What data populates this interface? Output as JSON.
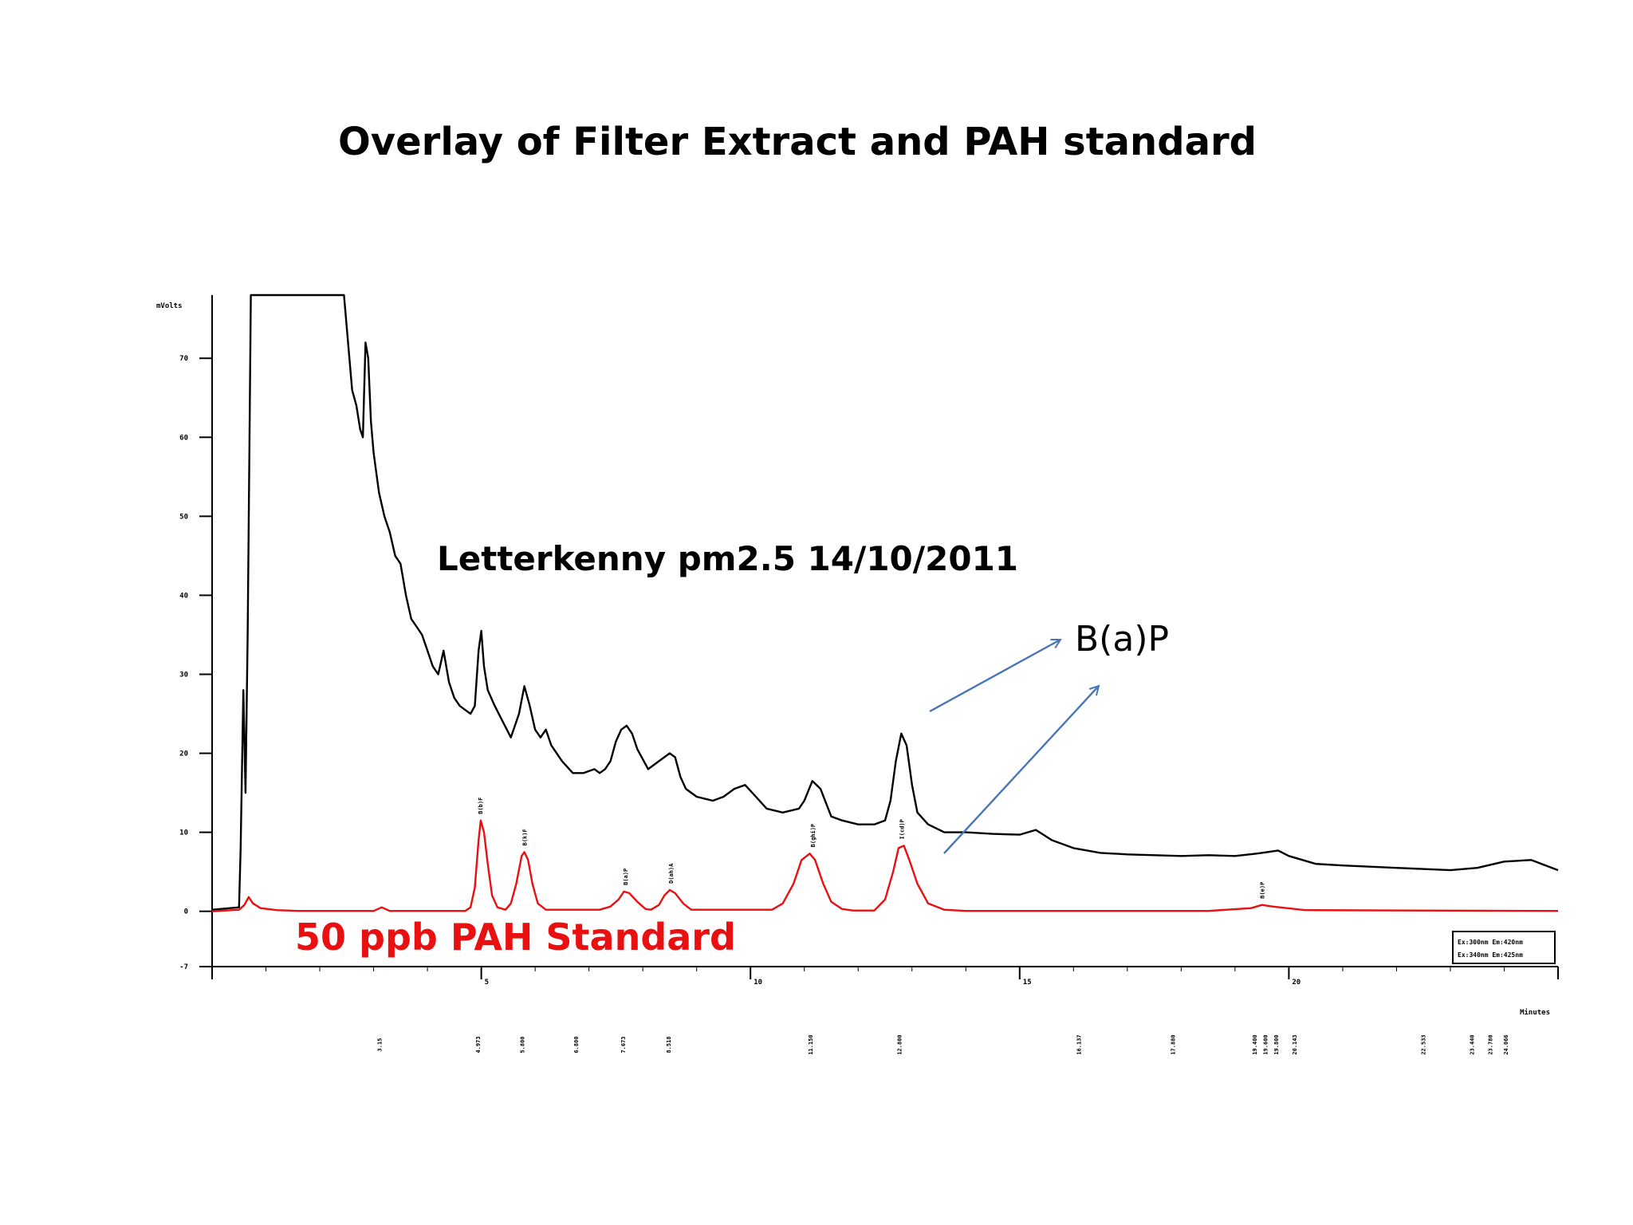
{
  "slide": {
    "title": "Overlay of Filter Extract and PAH standard",
    "sample_label": "Letterkenny  pm2.5 14/10/2011",
    "standard_label": "50 ppb PAH Standard",
    "bap_label": "B(a)P"
  },
  "colors": {
    "sample": "#000000",
    "standard": "#e81010",
    "arrow": "#4a76b8"
  },
  "chart_data": {
    "type": "line",
    "title": "",
    "xlabel": "Minutes",
    "ylabel": "mVolts",
    "xlim": [
      0,
      25
    ],
    "ylim": [
      -7,
      78
    ],
    "x_ticks": [
      0,
      5,
      10,
      15,
      20,
      25
    ],
    "x_tick_labels": [
      "",
      "5",
      "10",
      "15",
      "20",
      ""
    ],
    "y_ticks": [
      -7,
      0,
      10,
      20,
      30,
      40,
      50,
      60,
      70
    ],
    "y_tick_labels": [
      "-7",
      "0",
      "10",
      "20",
      "30",
      "40",
      "50",
      "60",
      "70"
    ],
    "grid": false,
    "retention_time_labels": [
      "3.15",
      "4.973",
      "5.800",
      "6.800",
      "7.673",
      "8.518",
      "11.150",
      "12.800",
      "16.137",
      "17.880",
      "19.400",
      "19.600",
      "19.800",
      "20.143",
      "22.533",
      "23.440",
      "23.780",
      "24.066"
    ],
    "retention_times": [
      3.15,
      4.973,
      5.8,
      6.8,
      7.673,
      8.518,
      11.15,
      12.8,
      16.137,
      17.88,
      19.4,
      19.6,
      19.8,
      20.143,
      22.533,
      23.44,
      23.78,
      24.066
    ],
    "standard_peak_labels": [
      "B(b)F",
      "B(k)F",
      "B(a)P",
      "D(ah)A",
      "B(ghi)P",
      "I(cd)P",
      "B(e)P"
    ],
    "standard_peak_times": [
      4.973,
      5.8,
      7.673,
      8.518,
      11.15,
      12.8,
      19.5
    ],
    "legend_entries": [
      "Ex:300nm Em:420nm",
      "Ex:340nm Em:425nm"
    ],
    "series": [
      {
        "name": "Letterkenny  pm2.5 14/10/2011",
        "x": [
          0,
          0.5,
          0.53,
          0.58,
          0.62,
          0.66,
          0.72,
          0.85,
          2.45,
          2.5,
          2.6,
          2.68,
          2.75,
          2.8,
          2.85,
          2.9,
          2.95,
          3.0,
          3.1,
          3.2,
          3.3,
          3.4,
          3.5,
          3.6,
          3.7,
          3.8,
          3.9,
          4.0,
          4.1,
          4.2,
          4.3,
          4.4,
          4.5,
          4.6,
          4.7,
          4.8,
          4.88,
          4.95,
          5.0,
          5.05,
          5.12,
          5.25,
          5.4,
          5.55,
          5.7,
          5.8,
          5.9,
          6.0,
          6.1,
          6.2,
          6.3,
          6.5,
          6.7,
          6.9,
          7.1,
          7.2,
          7.3,
          7.4,
          7.5,
          7.6,
          7.7,
          7.8,
          7.9,
          8.1,
          8.3,
          8.5,
          8.6,
          8.7,
          8.8,
          9.0,
          9.3,
          9.5,
          9.7,
          9.9,
          10.1,
          10.3,
          10.6,
          10.9,
          11.0,
          11.15,
          11.3,
          11.5,
          11.7,
          12.0,
          12.3,
          12.5,
          12.6,
          12.7,
          12.8,
          12.9,
          13.0,
          13.1,
          13.3,
          13.6,
          14.0,
          14.5,
          15.0,
          15.3,
          15.6,
          16.0,
          16.5,
          17.0,
          17.5,
          18.0,
          18.5,
          19.0,
          19.4,
          19.6,
          19.8,
          20.0,
          20.5,
          21.0,
          22.0,
          23.0,
          23.5,
          24.0,
          24.5,
          25.0
        ],
        "y": [
          0.2,
          0.5,
          8,
          28,
          15,
          35,
          78,
          78,
          78,
          74,
          66,
          64,
          61,
          60,
          72,
          70,
          62,
          58,
          53,
          50,
          48,
          45,
          44,
          40,
          37,
          36,
          35,
          33,
          31,
          30,
          33,
          29,
          27,
          26,
          25.5,
          25,
          26,
          33,
          35.5,
          31,
          28,
          26,
          24,
          22,
          25,
          28.5,
          26,
          23,
          22,
          23,
          21,
          19,
          17.5,
          17.5,
          18,
          17.5,
          18,
          19,
          21.5,
          23,
          23.5,
          22.5,
          20.5,
          18,
          19,
          20,
          19.5,
          17,
          15.5,
          14.5,
          14,
          14.5,
          15.5,
          16,
          14.5,
          13,
          12.5,
          13,
          14,
          16.5,
          15.5,
          12,
          11.5,
          11,
          11,
          11.5,
          14,
          19,
          22.5,
          21,
          16,
          12.5,
          11,
          10,
          10,
          9.8,
          9.7,
          10.3,
          9,
          8,
          7.4,
          7.2,
          7.1,
          7,
          7.1,
          7,
          7.3,
          7.5,
          7.7,
          7,
          6,
          5.8,
          5.5,
          5.2,
          5.5,
          6.3,
          6.5,
          5.2
        ]
      },
      {
        "name": "50 ppb PAH Standard",
        "x": [
          0,
          0.5,
          0.6,
          0.68,
          0.76,
          0.9,
          1.2,
          1.6,
          3.0,
          3.15,
          3.3,
          4.7,
          4.8,
          4.88,
          4.95,
          4.99,
          5.05,
          5.12,
          5.2,
          5.3,
          5.45,
          5.55,
          5.65,
          5.75,
          5.8,
          5.87,
          5.95,
          6.05,
          6.2,
          7.2,
          7.4,
          7.55,
          7.65,
          7.75,
          7.9,
          8.05,
          8.15,
          8.3,
          8.4,
          8.5,
          8.6,
          8.75,
          8.9,
          10.4,
          10.6,
          10.8,
          10.95,
          11.1,
          11.2,
          11.35,
          11.5,
          11.7,
          11.9,
          12.3,
          12.5,
          12.65,
          12.75,
          12.85,
          12.95,
          13.1,
          13.3,
          13.6,
          14.0,
          18.5,
          19.3,
          19.5,
          19.7,
          20.3,
          25.0
        ],
        "y": [
          0,
          0.2,
          0.8,
          1.8,
          1.0,
          0.4,
          0.15,
          0.05,
          0.05,
          0.5,
          0.05,
          0.05,
          0.5,
          3,
          9,
          11.5,
          10,
          6,
          2,
          0.5,
          0.2,
          1,
          3.5,
          7,
          7.5,
          6.5,
          3.5,
          1,
          0.2,
          0.2,
          0.6,
          1.5,
          2.5,
          2.3,
          1.2,
          0.3,
          0.2,
          0.8,
          2.0,
          2.7,
          2.3,
          1.0,
          0.2,
          0.2,
          1.0,
          3.5,
          6.5,
          7.3,
          6.5,
          3.5,
          1.2,
          0.3,
          0.1,
          0.1,
          1.5,
          5,
          8,
          8.3,
          6.5,
          3.5,
          1.0,
          0.2,
          0.05,
          0.05,
          0.4,
          0.8,
          0.6,
          0.15,
          0.05
        ]
      }
    ]
  }
}
